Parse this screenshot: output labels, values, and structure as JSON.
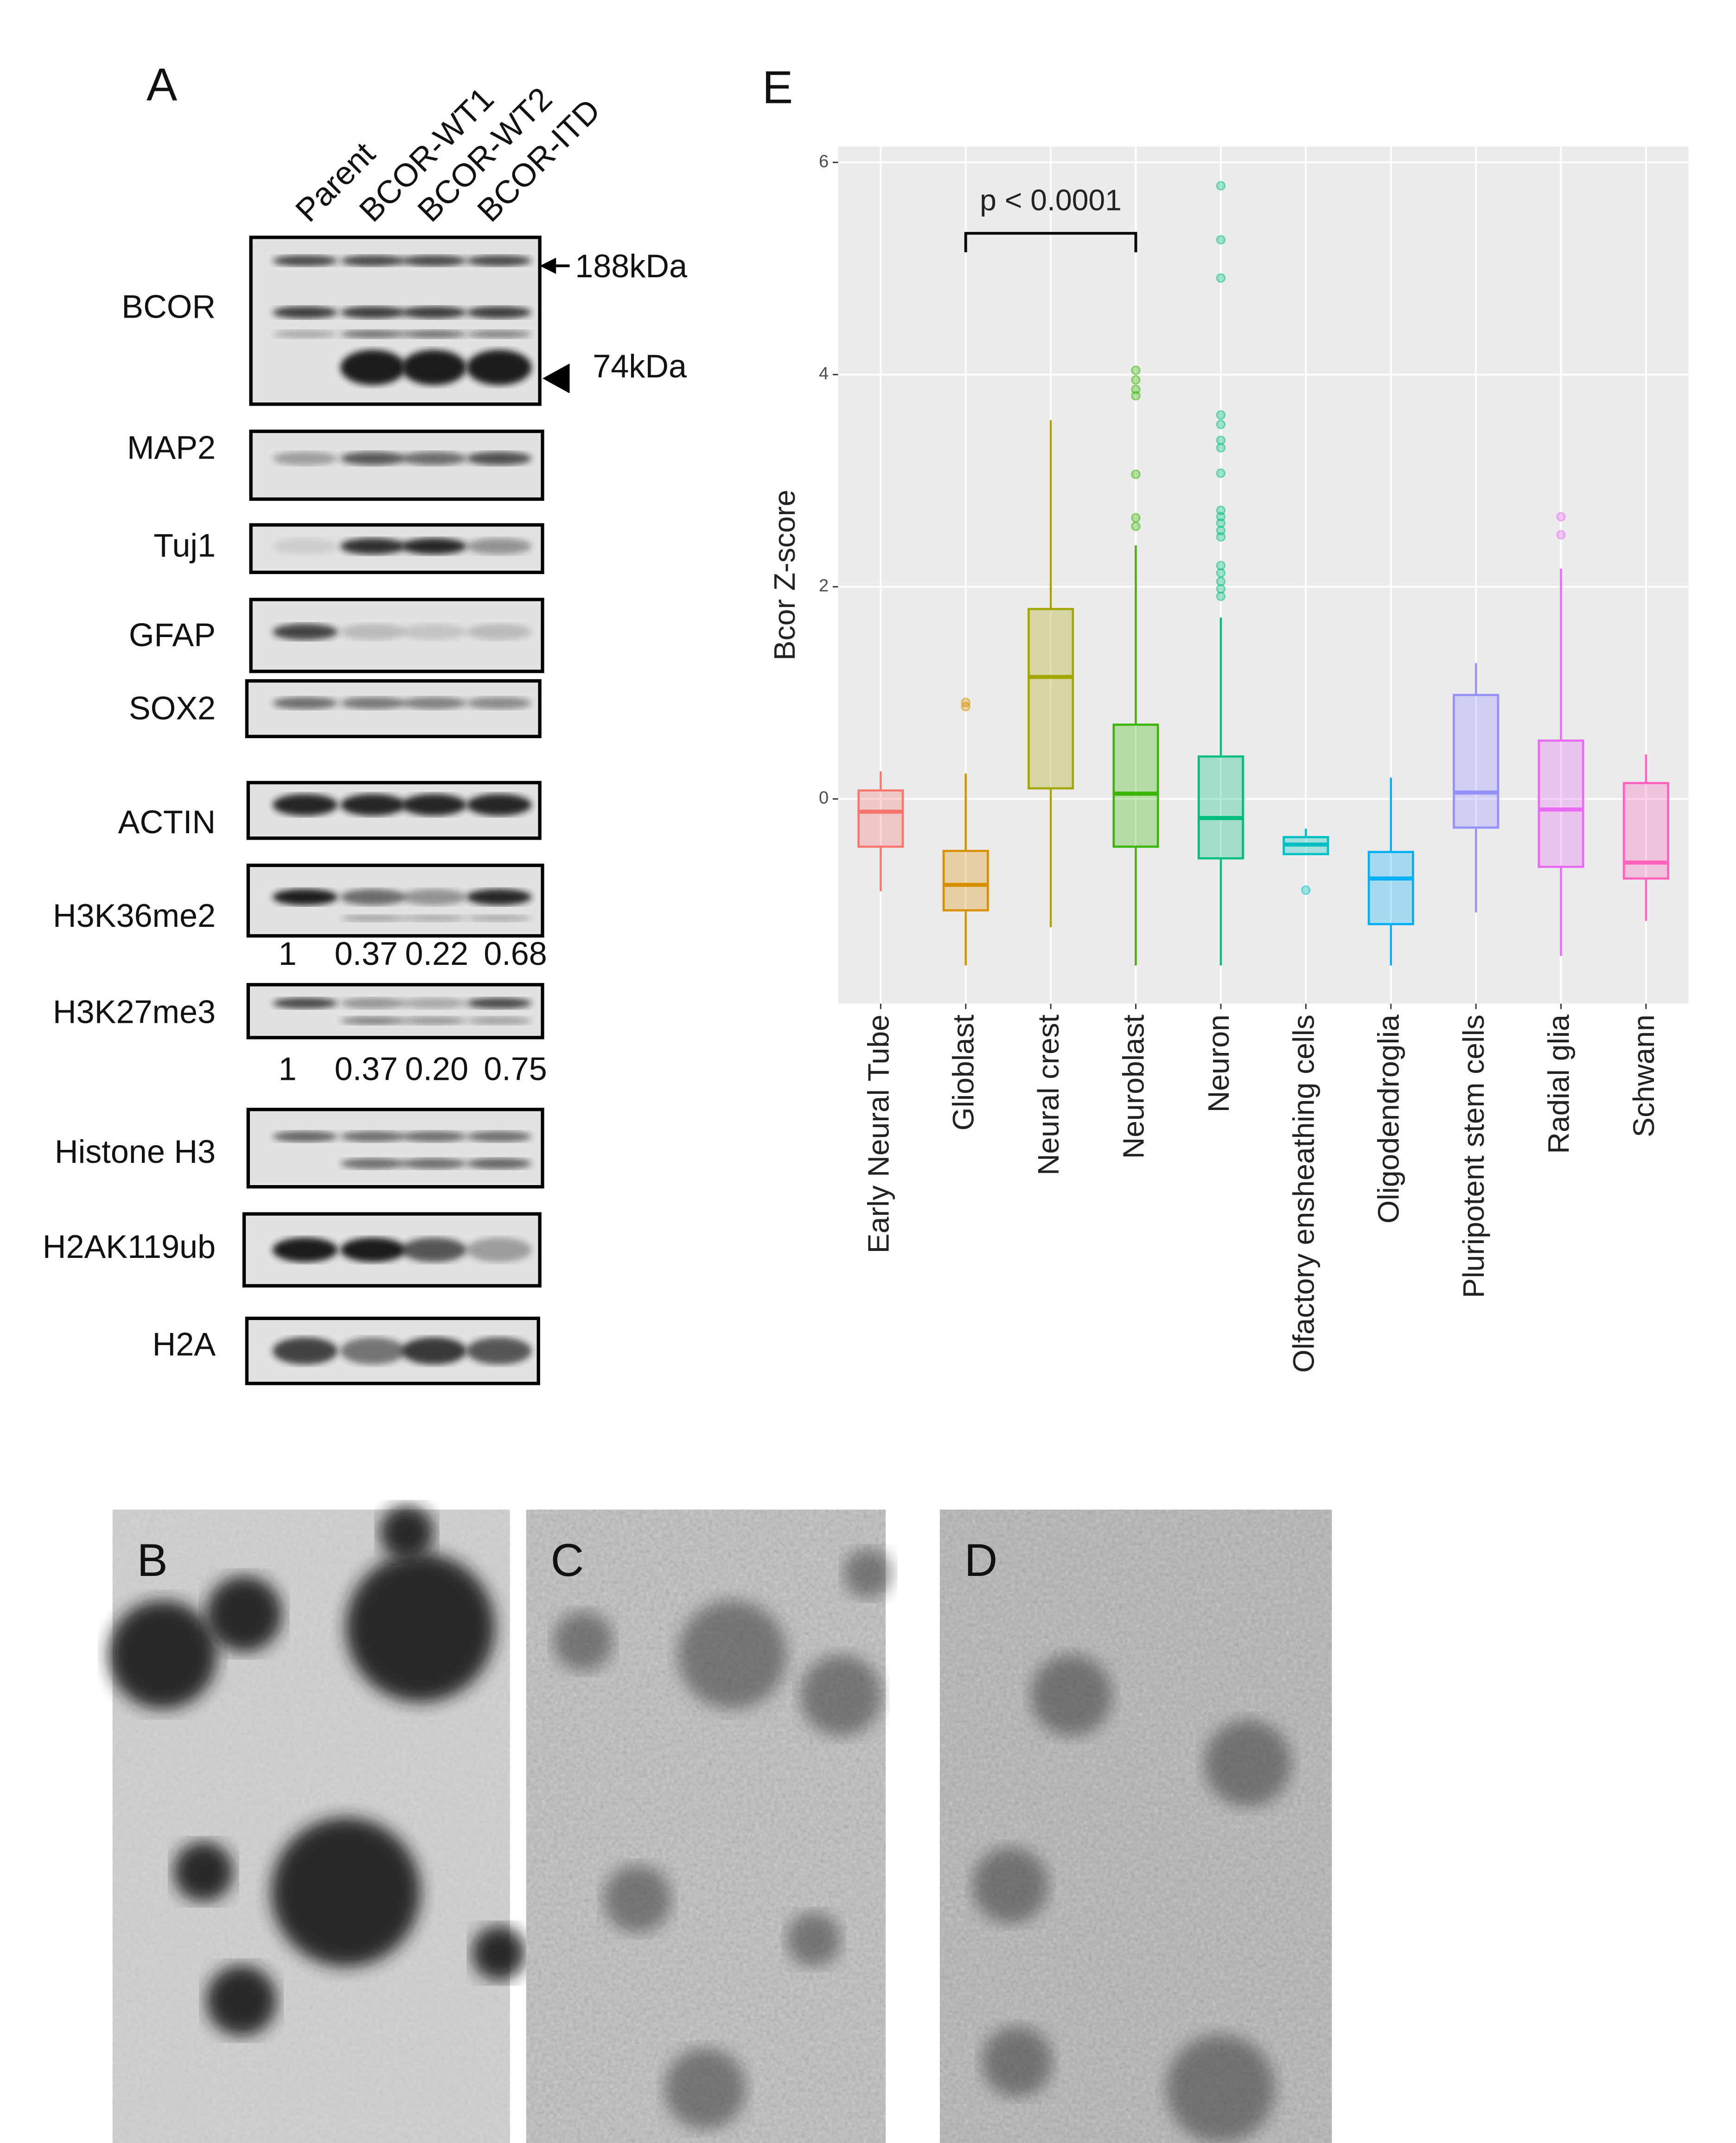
{
  "panels": {
    "a": "A",
    "b": "B",
    "c": "C",
    "d": "D",
    "e": "E"
  },
  "western_blot": {
    "lanes": [
      "Parent",
      "BCOR-WT1",
      "BCOR-WT2",
      "BCOR-ITD"
    ],
    "markers": [
      "188kDa",
      "74kDa"
    ],
    "proteins": [
      "BCOR",
      "MAP2",
      "Tuj1",
      "GFAP",
      "SOX2",
      "ACTIN",
      "H3K36me2",
      "H3K27me3",
      "Histone H3",
      "H2AK119ub",
      "H2A"
    ],
    "quantification": [
      {
        "protein": "H3K36me2",
        "values": [
          "1",
          "0.37",
          "0.22",
          "0.68"
        ]
      },
      {
        "protein": "H3K27me3",
        "values": [
          "1",
          "0.37",
          "0.20",
          "0.75"
        ]
      }
    ]
  },
  "chart_data": {
    "type": "box",
    "ylabel": "Bcor Z-score",
    "annotation": "p < 0.0001",
    "categories": [
      "Early Neural Tube",
      "Glioblast",
      "Neural crest",
      "Neuroblast",
      "Neuron",
      "Olfactory ensheathing cells",
      "Oligodendroglia",
      "Pluripotent stem cells",
      "Radial glia",
      "Schwann"
    ],
    "colors": [
      "#F8766D",
      "#D89000",
      "#A3A500",
      "#39B600",
      "#00BF7D",
      "#00BFC4",
      "#00B0F6",
      "#9590FF",
      "#E76BF3",
      "#FF62BC"
    ],
    "boxes": [
      {
        "low": -0.87,
        "q1": -0.45,
        "median": -0.12,
        "q3": 0.08,
        "high": 0.26,
        "outliers": []
      },
      {
        "low": -1.57,
        "q1": -1.05,
        "median": -0.81,
        "q3": -0.49,
        "high": 0.24,
        "outliers": [
          0.91,
          0.87
        ]
      },
      {
        "low": -1.21,
        "q1": 0.1,
        "median": 1.15,
        "q3": 1.79,
        "high": 3.57,
        "outliers": []
      },
      {
        "low": -1.57,
        "q1": -0.45,
        "median": 0.05,
        "q3": 0.7,
        "high": 2.39,
        "outliers": [
          4.04,
          3.95,
          3.86,
          3.8,
          3.06,
          2.65,
          2.57
        ]
      },
      {
        "low": -1.57,
        "q1": -0.56,
        "median": -0.18,
        "q3": 0.4,
        "high": 1.71,
        "outliers": [
          5.78,
          5.27,
          4.91,
          3.62,
          3.53,
          3.38,
          3.31,
          3.07,
          2.72,
          2.66,
          2.6,
          2.53,
          2.47,
          2.2,
          2.13,
          2.05,
          1.98,
          1.91
        ]
      },
      {
        "low": -0.52,
        "q1": -0.52,
        "median": -0.43,
        "q3": -0.36,
        "high": -0.28,
        "outliers": [
          -0.86
        ]
      },
      {
        "low": -1.57,
        "q1": -1.18,
        "median": -0.75,
        "q3": -0.5,
        "high": 0.2,
        "outliers": []
      },
      {
        "low": -1.07,
        "q1": -0.27,
        "median": 0.06,
        "q3": 0.98,
        "high": 1.28,
        "outliers": []
      },
      {
        "low": -1.48,
        "q1": -0.64,
        "median": -0.1,
        "q3": 0.55,
        "high": 2.17,
        "outliers": [
          2.66,
          2.49
        ]
      },
      {
        "low": -1.15,
        "q1": -0.75,
        "median": -0.6,
        "q3": 0.15,
        "high": 0.42,
        "outliers": []
      }
    ],
    "ylim": [
      -1.93,
      6.15
    ],
    "yticks": [
      0,
      2,
      4,
      6
    ],
    "grid": true
  }
}
